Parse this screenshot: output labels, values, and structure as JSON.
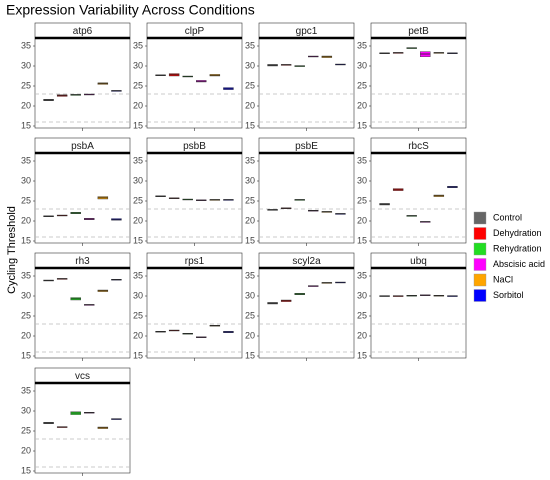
{
  "title": "Expression Variability Across Conditions",
  "ylabel": "Cycling Threshold",
  "chart_data": [
    {
      "type": "box",
      "title": "atp6",
      "ylim": [
        14.5,
        37
      ],
      "yticks": [
        15,
        20,
        25,
        30,
        35
      ],
      "hlines": [
        16,
        23
      ],
      "series": [
        {
          "name": "Control",
          "color": "#666666",
          "values": [
            21.3,
            21.5,
            21.7
          ]
        },
        {
          "name": "Dehydration",
          "color": "#ff0000",
          "values": [
            22.4,
            22.6,
            22.8
          ]
        },
        {
          "name": "Rehydration",
          "color": "#22dd22",
          "values": [
            22.7,
            22.8,
            22.9
          ]
        },
        {
          "name": "Abscisic acid",
          "color": "#ff00ff",
          "values": [
            22.8,
            22.9,
            23.0
          ]
        },
        {
          "name": "NaCl",
          "color": "#ffa500",
          "values": [
            25.4,
            25.6,
            25.8
          ]
        },
        {
          "name": "Sorbitol",
          "color": "#0000ff",
          "values": [
            23.7,
            23.8,
            23.9
          ]
        }
      ]
    },
    {
      "type": "box",
      "title": "clpP",
      "ylim": [
        14.5,
        37
      ],
      "yticks": [
        15,
        20,
        25,
        30,
        35
      ],
      "hlines": [
        16,
        23
      ],
      "series": [
        {
          "name": "Control",
          "color": "#666666",
          "values": [
            27.6,
            27.7,
            27.8
          ]
        },
        {
          "name": "Dehydration",
          "color": "#ff0000",
          "values": [
            27.5,
            27.8,
            28.1
          ]
        },
        {
          "name": "Rehydration",
          "color": "#22dd22",
          "values": [
            27.3,
            27.4,
            27.5
          ]
        },
        {
          "name": "Abscisic acid",
          "color": "#ff00ff",
          "values": [
            26.0,
            26.2,
            26.4
          ]
        },
        {
          "name": "NaCl",
          "color": "#ffa500",
          "values": [
            27.5,
            27.7,
            27.9
          ]
        },
        {
          "name": "Sorbitol",
          "color": "#0000ff",
          "values": [
            24.1,
            24.3,
            24.6
          ]
        }
      ]
    },
    {
      "type": "box",
      "title": "gpc1",
      "ylim": [
        14.5,
        37
      ],
      "yticks": [
        15,
        20,
        25,
        30,
        35
      ],
      "hlines": [
        16,
        23
      ],
      "series": [
        {
          "name": "Control",
          "color": "#666666",
          "values": [
            30.0,
            30.2,
            30.4
          ]
        },
        {
          "name": "Dehydration",
          "color": "#ff0000",
          "values": [
            30.2,
            30.3,
            30.4
          ]
        },
        {
          "name": "Rehydration",
          "color": "#22dd22",
          "values": [
            29.9,
            30.0,
            30.1
          ]
        },
        {
          "name": "Abscisic acid",
          "color": "#ff00ff",
          "values": [
            32.3,
            32.4,
            32.5
          ]
        },
        {
          "name": "NaCl",
          "color": "#ffa500",
          "values": [
            32.1,
            32.3,
            32.5
          ]
        },
        {
          "name": "Sorbitol",
          "color": "#0000ff",
          "values": [
            30.3,
            30.4,
            30.5
          ]
        }
      ]
    },
    {
      "type": "box",
      "title": "petB",
      "ylim": [
        14.5,
        37
      ],
      "yticks": [
        15,
        20,
        25,
        30,
        35
      ],
      "hlines": [
        16,
        23
      ],
      "series": [
        {
          "name": "Control",
          "color": "#666666",
          "values": [
            33.1,
            33.2,
            33.3
          ]
        },
        {
          "name": "Dehydration",
          "color": "#ff0000",
          "values": [
            33.2,
            33.3,
            33.4
          ]
        },
        {
          "name": "Rehydration",
          "color": "#22dd22",
          "values": [
            34.4,
            34.5,
            34.6
          ]
        },
        {
          "name": "Abscisic acid",
          "color": "#ff00ff",
          "values": [
            32.3,
            33.0,
            33.6
          ]
        },
        {
          "name": "NaCl",
          "color": "#ffa500",
          "values": [
            33.2,
            33.3,
            33.4
          ]
        },
        {
          "name": "Sorbitol",
          "color": "#0000ff",
          "values": [
            33.1,
            33.2,
            33.3
          ]
        }
      ]
    },
    {
      "type": "box",
      "title": "psbA",
      "ylim": [
        14.5,
        37
      ],
      "yticks": [
        15,
        20,
        25,
        30,
        35
      ],
      "hlines": [
        16,
        23
      ],
      "series": [
        {
          "name": "Control",
          "color": "#666666",
          "values": [
            21.1,
            21.2,
            21.3
          ]
        },
        {
          "name": "Dehydration",
          "color": "#ff0000",
          "values": [
            21.3,
            21.4,
            21.5
          ]
        },
        {
          "name": "Rehydration",
          "color": "#22dd22",
          "values": [
            21.8,
            22.0,
            22.2
          ]
        },
        {
          "name": "Abscisic acid",
          "color": "#ff00ff",
          "values": [
            20.3,
            20.5,
            20.7
          ]
        },
        {
          "name": "NaCl",
          "color": "#ffa500",
          "values": [
            25.5,
            25.8,
            26.1
          ]
        },
        {
          "name": "Sorbitol",
          "color": "#0000ff",
          "values": [
            20.2,
            20.4,
            20.6
          ]
        }
      ]
    },
    {
      "type": "box",
      "title": "psbB",
      "ylim": [
        14.5,
        37
      ],
      "yticks": [
        15,
        20,
        25,
        30,
        35
      ],
      "hlines": [
        16,
        23
      ],
      "series": [
        {
          "name": "Control",
          "color": "#666666",
          "values": [
            26.1,
            26.2,
            26.3
          ]
        },
        {
          "name": "Dehydration",
          "color": "#ff0000",
          "values": [
            25.6,
            25.7,
            25.8
          ]
        },
        {
          "name": "Rehydration",
          "color": "#22dd22",
          "values": [
            25.3,
            25.4,
            25.5
          ]
        },
        {
          "name": "Abscisic acid",
          "color": "#ff00ff",
          "values": [
            25.1,
            25.2,
            25.3
          ]
        },
        {
          "name": "NaCl",
          "color": "#ffa500",
          "values": [
            25.2,
            25.3,
            25.4
          ]
        },
        {
          "name": "Sorbitol",
          "color": "#0000ff",
          "values": [
            25.2,
            25.3,
            25.4
          ]
        }
      ]
    },
    {
      "type": "box",
      "title": "psbE",
      "ylim": [
        14.5,
        37
      ],
      "yticks": [
        15,
        20,
        25,
        30,
        35
      ],
      "hlines": [
        16,
        23
      ],
      "series": [
        {
          "name": "Control",
          "color": "#666666",
          "values": [
            22.7,
            22.8,
            22.9
          ]
        },
        {
          "name": "Dehydration",
          "color": "#ff0000",
          "values": [
            23.1,
            23.2,
            23.3
          ]
        },
        {
          "name": "Rehydration",
          "color": "#22dd22",
          "values": [
            25.2,
            25.3,
            25.4
          ]
        },
        {
          "name": "Abscisic acid",
          "color": "#ff00ff",
          "values": [
            22.5,
            22.6,
            22.7
          ]
        },
        {
          "name": "NaCl",
          "color": "#ffa500",
          "values": [
            22.2,
            22.3,
            22.4
          ]
        },
        {
          "name": "Sorbitol",
          "color": "#0000ff",
          "values": [
            21.7,
            21.8,
            21.9
          ]
        }
      ]
    },
    {
      "type": "box",
      "title": "rbcS",
      "ylim": [
        14.5,
        37
      ],
      "yticks": [
        15,
        20,
        25,
        30,
        35
      ],
      "hlines": [
        16,
        23
      ],
      "series": [
        {
          "name": "Control",
          "color": "#666666",
          "values": [
            24.0,
            24.2,
            24.4
          ]
        },
        {
          "name": "Dehydration",
          "color": "#ff0000",
          "values": [
            27.6,
            27.8,
            28.1
          ]
        },
        {
          "name": "Rehydration",
          "color": "#22dd22",
          "values": [
            21.2,
            21.3,
            21.4
          ]
        },
        {
          "name": "Abscisic acid",
          "color": "#ff00ff",
          "values": [
            19.7,
            19.8,
            19.9
          ]
        },
        {
          "name": "NaCl",
          "color": "#ffa500",
          "values": [
            26.1,
            26.3,
            26.5
          ]
        },
        {
          "name": "Sorbitol",
          "color": "#0000ff",
          "values": [
            28.3,
            28.5,
            28.7
          ]
        }
      ]
    },
    {
      "type": "box",
      "title": "rh3",
      "ylim": [
        14.5,
        37
      ],
      "yticks": [
        15,
        20,
        25,
        30,
        35
      ],
      "hlines": [
        16,
        23
      ],
      "series": [
        {
          "name": "Control",
          "color": "#666666",
          "values": [
            33.8,
            33.9,
            34.0
          ]
        },
        {
          "name": "Dehydration",
          "color": "#ff0000",
          "values": [
            34.2,
            34.3,
            34.4
          ]
        },
        {
          "name": "Rehydration",
          "color": "#22dd22",
          "values": [
            29.0,
            29.3,
            29.6
          ]
        },
        {
          "name": "Abscisic acid",
          "color": "#ff00ff",
          "values": [
            27.7,
            27.8,
            27.9
          ]
        },
        {
          "name": "NaCl",
          "color": "#ffa500",
          "values": [
            31.1,
            31.3,
            31.5
          ]
        },
        {
          "name": "Sorbitol",
          "color": "#0000ff",
          "values": [
            34.0,
            34.1,
            34.2
          ]
        }
      ]
    },
    {
      "type": "box",
      "title": "rps1",
      "ylim": [
        14.5,
        37
      ],
      "yticks": [
        15,
        20,
        25,
        30,
        35
      ],
      "hlines": [
        16,
        23
      ],
      "series": [
        {
          "name": "Control",
          "color": "#666666",
          "values": [
            21.0,
            21.1,
            21.2
          ]
        },
        {
          "name": "Dehydration",
          "color": "#ff0000",
          "values": [
            21.3,
            21.4,
            21.5
          ]
        },
        {
          "name": "Rehydration",
          "color": "#22dd22",
          "values": [
            20.5,
            20.6,
            20.7
          ]
        },
        {
          "name": "Abscisic acid",
          "color": "#ff00ff",
          "values": [
            19.6,
            19.7,
            19.8
          ]
        },
        {
          "name": "NaCl",
          "color": "#ffa500",
          "values": [
            22.5,
            22.6,
            22.7
          ]
        },
        {
          "name": "Sorbitol",
          "color": "#0000ff",
          "values": [
            20.8,
            21.0,
            21.2
          ]
        }
      ]
    },
    {
      "type": "box",
      "title": "scyl2a",
      "ylim": [
        14.5,
        37
      ],
      "yticks": [
        15,
        20,
        25,
        30,
        35
      ],
      "hlines": [
        16,
        23
      ],
      "series": [
        {
          "name": "Control",
          "color": "#666666",
          "values": [
            28.0,
            28.2,
            28.4
          ]
        },
        {
          "name": "Dehydration",
          "color": "#ff0000",
          "values": [
            28.6,
            28.8,
            29.0
          ]
        },
        {
          "name": "Rehydration",
          "color": "#22dd22",
          "values": [
            30.3,
            30.5,
            30.7
          ]
        },
        {
          "name": "Abscisic acid",
          "color": "#ff00ff",
          "values": [
            32.4,
            32.5,
            32.6
          ]
        },
        {
          "name": "NaCl",
          "color": "#ffa500",
          "values": [
            33.2,
            33.3,
            33.4
          ]
        },
        {
          "name": "Sorbitol",
          "color": "#0000ff",
          "values": [
            33.3,
            33.4,
            33.5
          ]
        }
      ]
    },
    {
      "type": "box",
      "title": "ubq",
      "ylim": [
        14.5,
        37
      ],
      "yticks": [
        15,
        20,
        25,
        30,
        35
      ],
      "hlines": [
        16,
        23
      ],
      "series": [
        {
          "name": "Control",
          "color": "#666666",
          "values": [
            29.9,
            30.0,
            30.1
          ]
        },
        {
          "name": "Dehydration",
          "color": "#ff0000",
          "values": [
            29.9,
            30.0,
            30.1
          ]
        },
        {
          "name": "Rehydration",
          "color": "#22dd22",
          "values": [
            30.0,
            30.1,
            30.2
          ]
        },
        {
          "name": "Abscisic acid",
          "color": "#ff00ff",
          "values": [
            30.1,
            30.2,
            30.3
          ]
        },
        {
          "name": "NaCl",
          "color": "#ffa500",
          "values": [
            30.0,
            30.1,
            30.2
          ]
        },
        {
          "name": "Sorbitol",
          "color": "#0000ff",
          "values": [
            29.9,
            30.0,
            30.1
          ]
        }
      ]
    },
    {
      "type": "box",
      "title": "vcs",
      "ylim": [
        14.5,
        37
      ],
      "yticks": [
        15,
        20,
        25,
        30,
        35
      ],
      "hlines": [
        16,
        23
      ],
      "series": [
        {
          "name": "Control",
          "color": "#666666",
          "values": [
            26.8,
            27.0,
            27.2
          ]
        },
        {
          "name": "Dehydration",
          "color": "#ff0000",
          "values": [
            25.9,
            26.0,
            26.1
          ]
        },
        {
          "name": "Rehydration",
          "color": "#22dd22",
          "values": [
            29.1,
            29.5,
            29.8
          ]
        },
        {
          "name": "Abscisic acid",
          "color": "#ff00ff",
          "values": [
            29.5,
            29.6,
            29.7
          ]
        },
        {
          "name": "NaCl",
          "color": "#ffa500",
          "values": [
            25.6,
            25.8,
            26.0
          ]
        },
        {
          "name": "Sorbitol",
          "color": "#0000ff",
          "values": [
            27.9,
            28.0,
            28.1
          ]
        }
      ]
    }
  ]
}
